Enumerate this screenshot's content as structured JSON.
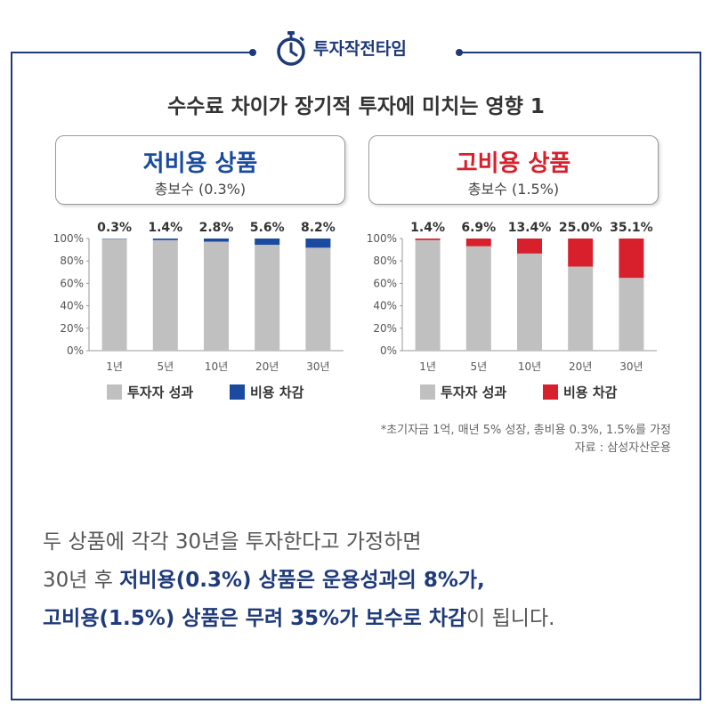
{
  "header": {
    "title": "투자작전타임",
    "icon": "stopwatch-icon"
  },
  "title": "수수료 차이가 장기적 투자에 미치는 영향 1",
  "colors": {
    "navy": "#1e3a7b",
    "blue": "#1a4ba0",
    "red": "#d7202b",
    "gray": "#c0c0c0"
  },
  "products": [
    {
      "name": "저비용 상품",
      "fee_label": "총보수 (0.3%)",
      "color": "#1a4ba0"
    },
    {
      "name": "고비용 상품",
      "fee_label": "총보수 (1.5%)",
      "color": "#d7202b"
    }
  ],
  "chart_data": [
    {
      "type": "bar",
      "stacked": true,
      "categories": [
        "1년",
        "5년",
        "10년",
        "20년",
        "30년"
      ],
      "series": [
        {
          "name": "투자자 성과",
          "values": [
            99.7,
            98.6,
            97.2,
            94.4,
            91.8
          ],
          "color": "#c0c0c0"
        },
        {
          "name": "비용 차감",
          "values": [
            0.3,
            1.4,
            2.8,
            5.6,
            8.2
          ],
          "color": "#1a4ba0"
        }
      ],
      "data_labels": [
        "0.3%",
        "1.4%",
        "2.8%",
        "5.6%",
        "8.2%"
      ],
      "yticks": [
        "100%",
        "80%",
        "60%",
        "40%",
        "20%",
        "0%"
      ],
      "ylim": [
        0,
        100
      ],
      "legend": "bottom"
    },
    {
      "type": "bar",
      "stacked": true,
      "categories": [
        "1년",
        "5년",
        "10년",
        "20년",
        "30년"
      ],
      "series": [
        {
          "name": "투자자 성과",
          "values": [
            98.6,
            93.1,
            86.6,
            75.0,
            64.9
          ],
          "color": "#c0c0c0"
        },
        {
          "name": "비용 차감",
          "values": [
            1.4,
            6.9,
            13.4,
            25.0,
            35.1
          ],
          "color": "#d7202b"
        }
      ],
      "data_labels": [
        "1.4%",
        "6.9%",
        "13.4%",
        "25.0%",
        "35.1%"
      ],
      "yticks": [
        "100%",
        "80%",
        "60%",
        "40%",
        "20%",
        "0%"
      ],
      "ylim": [
        0,
        100
      ],
      "legend": "bottom"
    }
  ],
  "notes": {
    "assumption": "*초기자금 1억, 매년 5% 성장, 총비용 0.3%, 1.5%를 가정",
    "source": "자료 : 삼성자산운용"
  },
  "body": {
    "line1": "두 상품에 각각 30년을 투자한다고 가정하면",
    "line2_plain": "30년 후 ",
    "line2_hl": "저비용(0.3%) 상품은 운용성과의 8%가,",
    "line3_hl": "고비용(1.5%) 상품은 무려 35%가 보수로 차감",
    "line3_plain": "이 됩니다."
  }
}
